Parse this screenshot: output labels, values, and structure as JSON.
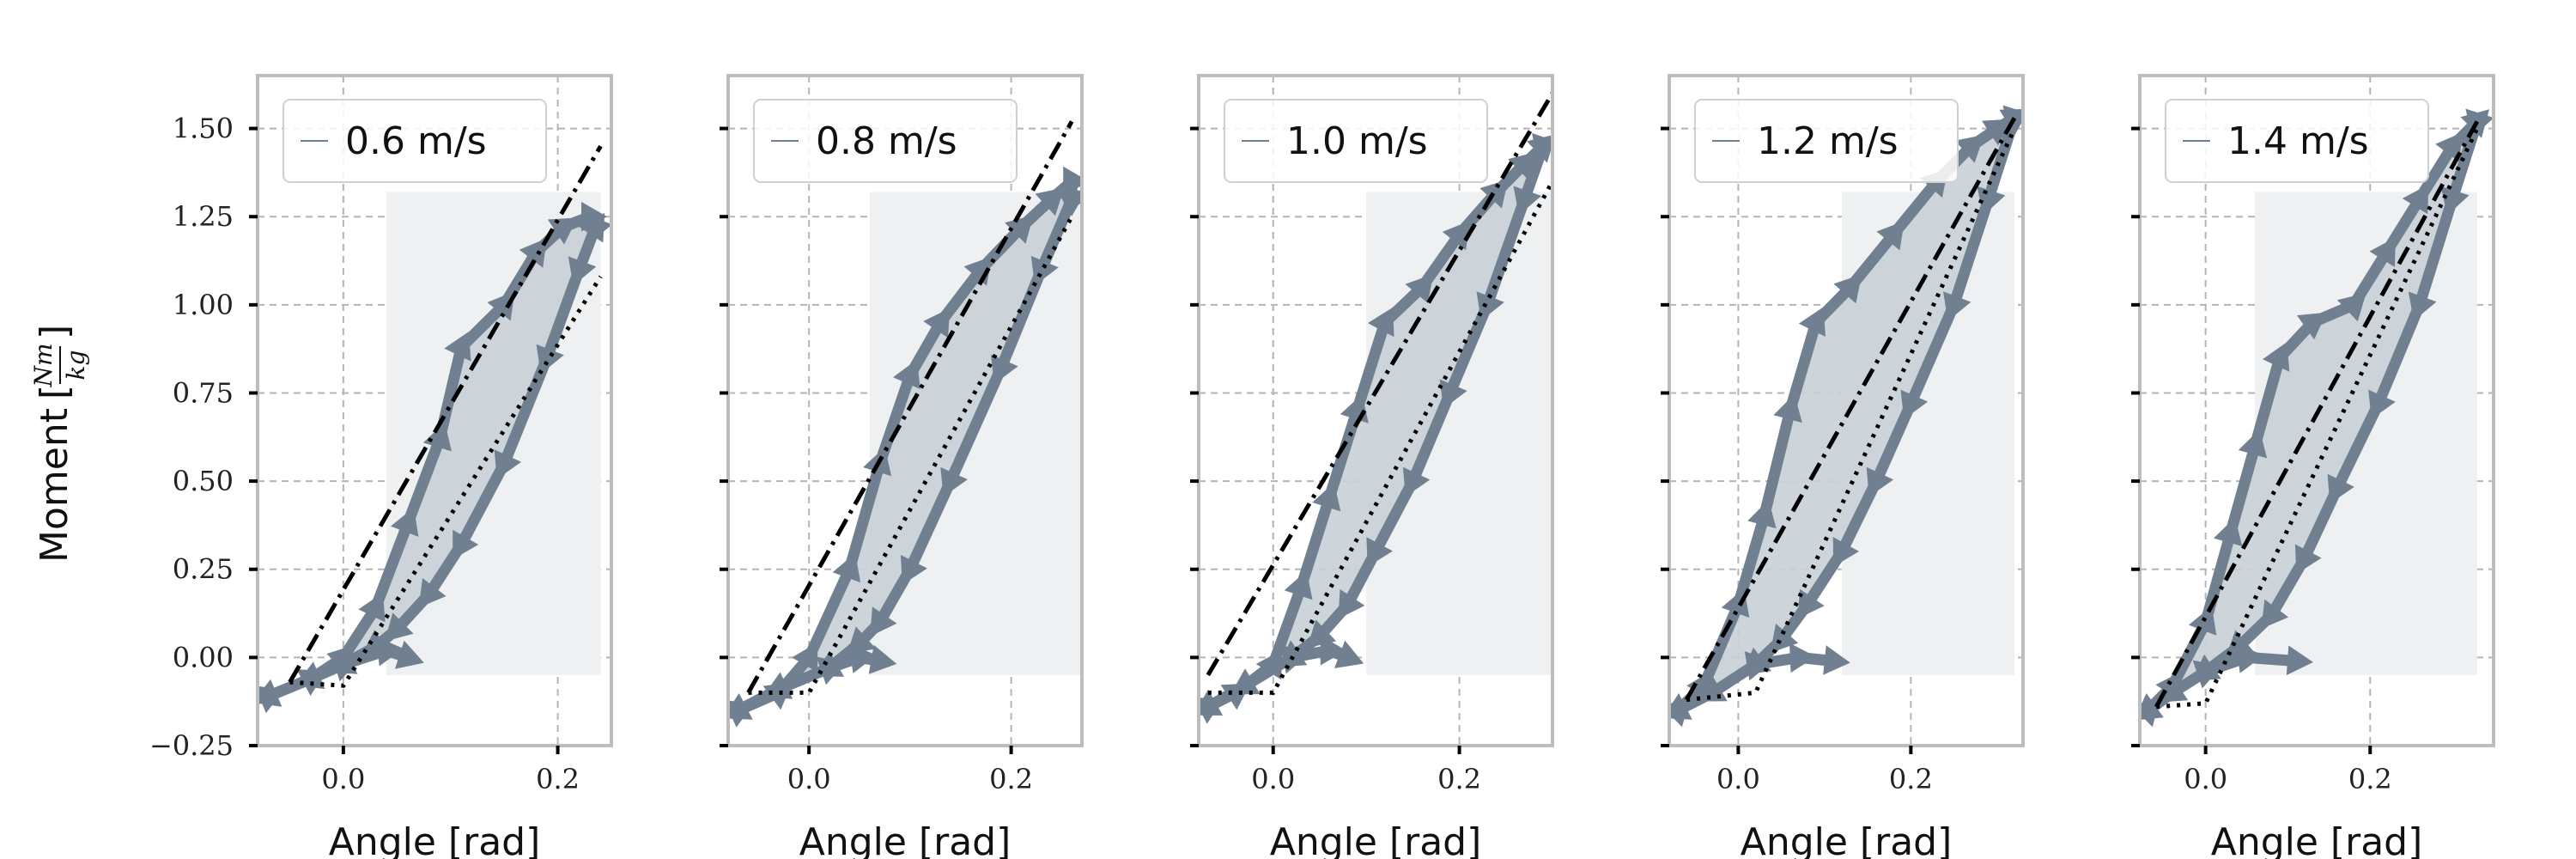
{
  "chart_data": {
    "type": "line",
    "ylabel_text": "Moment",
    "ylabel_unit": {
      "numerator": "Nm",
      "denominator": "kg"
    },
    "xlabel": "Angle [rad]",
    "ylim": [
      -0.25,
      1.65
    ],
    "yticks": [
      -0.25,
      0.0,
      0.25,
      0.5,
      0.75,
      1.0,
      1.25,
      1.5
    ],
    "ytick_labels": [
      "−0.25",
      "0.00",
      "0.25",
      "0.50",
      "0.75",
      "1.00",
      "1.25",
      "1.50"
    ],
    "xticks": [
      0.0,
      0.2
    ],
    "xtick_labels": [
      "0.0",
      "0.2"
    ],
    "grid": true,
    "legend_placement": "upper left",
    "colors": {
      "loop": "#708090",
      "loop_fill": "#c8cfd6",
      "shade": "#eef0f2",
      "frame": "#bdbdbd",
      "grid": "#b5b5b5",
      "fit": "#000000"
    },
    "panels": [
      {
        "legend": "0.6 m/s",
        "xlim": [
          -0.08,
          0.25
        ],
        "loading": [
          [
            -0.07,
            -0.11
          ],
          [
            -0.03,
            -0.06
          ],
          [
            0.0,
            0.0
          ],
          [
            0.03,
            0.14
          ],
          [
            0.06,
            0.38
          ],
          [
            0.09,
            0.62
          ],
          [
            0.11,
            0.88
          ],
          [
            0.15,
            1.0
          ],
          [
            0.18,
            1.15
          ],
          [
            0.205,
            1.22
          ],
          [
            0.23,
            1.25
          ],
          [
            0.235,
            1.22
          ]
        ],
        "unloading": [
          [
            0.235,
            1.22
          ],
          [
            0.22,
            1.1
          ],
          [
            0.19,
            0.85
          ],
          [
            0.15,
            0.55
          ],
          [
            0.11,
            0.32
          ],
          [
            0.08,
            0.18
          ],
          [
            0.05,
            0.08
          ],
          [
            0.03,
            0.03
          ],
          [
            0.0,
            -0.02
          ],
          [
            -0.03,
            -0.06
          ],
          [
            -0.07,
            -0.11
          ]
        ],
        "hook": [
          [
            0.0,
            -0.02
          ],
          [
            0.04,
            0.02
          ],
          [
            0.06,
            0.0
          ]
        ],
        "shade_x": [
          0.04,
          0.24
        ],
        "fit_loading": [
          [
            -0.05,
            -0.07
          ],
          [
            0.24,
            1.45
          ]
        ],
        "fit_unloading": [
          [
            -0.05,
            -0.07
          ],
          [
            0.0,
            -0.08
          ],
          [
            0.24,
            1.08
          ]
        ]
      },
      {
        "legend": "0.8 m/s",
        "xlim": [
          -0.08,
          0.27
        ],
        "loading": [
          [
            -0.07,
            -0.15
          ],
          [
            -0.03,
            -0.1
          ],
          [
            0.0,
            0.0
          ],
          [
            0.04,
            0.25
          ],
          [
            0.07,
            0.55
          ],
          [
            0.1,
            0.8
          ],
          [
            0.13,
            0.95
          ],
          [
            0.17,
            1.1
          ],
          [
            0.21,
            1.22
          ],
          [
            0.24,
            1.3
          ],
          [
            0.26,
            1.35
          ],
          [
            0.26,
            1.3
          ]
        ],
        "unloading": [
          [
            0.26,
            1.3
          ],
          [
            0.23,
            1.1
          ],
          [
            0.19,
            0.82
          ],
          [
            0.14,
            0.5
          ],
          [
            0.1,
            0.25
          ],
          [
            0.07,
            0.1
          ],
          [
            0.05,
            0.04
          ],
          [
            0.02,
            -0.03
          ],
          [
            -0.03,
            -0.09
          ],
          [
            -0.07,
            -0.15
          ]
        ],
        "hook": [
          [
            0.02,
            -0.03
          ],
          [
            0.05,
            0.0
          ],
          [
            0.07,
            -0.01
          ]
        ],
        "shade_x": [
          0.06,
          0.27
        ],
        "fit_loading": [
          [
            -0.06,
            -0.1
          ],
          [
            0.26,
            1.52
          ]
        ],
        "fit_unloading": [
          [
            -0.06,
            -0.1
          ],
          [
            0.0,
            -0.1
          ],
          [
            0.26,
            1.25
          ]
        ]
      },
      {
        "legend": "1.0 m/s",
        "xlim": [
          -0.08,
          0.3
        ],
        "loading": [
          [
            -0.07,
            -0.14
          ],
          [
            -0.04,
            -0.1
          ],
          [
            0.0,
            -0.02
          ],
          [
            0.03,
            0.2
          ],
          [
            0.06,
            0.45
          ],
          [
            0.09,
            0.7
          ],
          [
            0.12,
            0.95
          ],
          [
            0.16,
            1.05
          ],
          [
            0.2,
            1.2
          ],
          [
            0.24,
            1.32
          ],
          [
            0.27,
            1.4
          ],
          [
            0.29,
            1.45
          ]
        ],
        "unloading": [
          [
            0.29,
            1.45
          ],
          [
            0.27,
            1.3
          ],
          [
            0.23,
            1.0
          ],
          [
            0.19,
            0.75
          ],
          [
            0.15,
            0.5
          ],
          [
            0.11,
            0.3
          ],
          [
            0.08,
            0.15
          ],
          [
            0.05,
            0.06
          ],
          [
            0.02,
            0.0
          ],
          [
            -0.03,
            -0.08
          ],
          [
            -0.07,
            -0.14
          ]
        ],
        "hook": [
          [
            0.02,
            0.0
          ],
          [
            0.06,
            0.02
          ],
          [
            0.08,
            0.0
          ]
        ],
        "shade_x": [
          0.1,
          0.3
        ],
        "fit_loading": [
          [
            -0.07,
            -0.05
          ],
          [
            0.3,
            1.6
          ]
        ],
        "fit_unloading": [
          [
            -0.07,
            -0.1
          ],
          [
            0.0,
            -0.1
          ],
          [
            0.3,
            1.35
          ]
        ]
      },
      {
        "legend": "1.2 m/s",
        "xlim": [
          -0.08,
          0.33
        ],
        "loading": [
          [
            -0.07,
            -0.15
          ],
          [
            -0.04,
            -0.08
          ],
          [
            0.0,
            0.15
          ],
          [
            0.03,
            0.4
          ],
          [
            0.06,
            0.7
          ],
          [
            0.09,
            0.95
          ],
          [
            0.13,
            1.05
          ],
          [
            0.18,
            1.2
          ],
          [
            0.23,
            1.35
          ],
          [
            0.27,
            1.45
          ],
          [
            0.3,
            1.5
          ],
          [
            0.32,
            1.53
          ]
        ],
        "unloading": [
          [
            0.32,
            1.53
          ],
          [
            0.29,
            1.3
          ],
          [
            0.25,
            1.0
          ],
          [
            0.2,
            0.72
          ],
          [
            0.16,
            0.5
          ],
          [
            0.12,
            0.3
          ],
          [
            0.08,
            0.15
          ],
          [
            0.05,
            0.05
          ],
          [
            0.02,
            -0.02
          ],
          [
            -0.03,
            -0.1
          ],
          [
            -0.07,
            -0.15
          ]
        ],
        "hook": [
          [
            0.02,
            -0.02
          ],
          [
            0.07,
            0.0
          ],
          [
            0.11,
            -0.01
          ]
        ],
        "shade_x": [
          0.12,
          0.32
        ],
        "fit_loading": [
          [
            -0.06,
            -0.12
          ],
          [
            0.32,
            1.53
          ]
        ],
        "fit_unloading": [
          [
            -0.06,
            -0.12
          ],
          [
            0.02,
            -0.1
          ],
          [
            0.32,
            1.5
          ]
        ]
      },
      {
        "legend": "1.4 m/s",
        "xlim": [
          -0.08,
          0.35
        ],
        "loading": [
          [
            -0.07,
            -0.15
          ],
          [
            -0.04,
            -0.08
          ],
          [
            0.0,
            0.1
          ],
          [
            0.03,
            0.35
          ],
          [
            0.06,
            0.6
          ],
          [
            0.09,
            0.85
          ],
          [
            0.13,
            0.95
          ],
          [
            0.18,
            1.0
          ],
          [
            0.22,
            1.15
          ],
          [
            0.26,
            1.3
          ],
          [
            0.3,
            1.45
          ],
          [
            0.33,
            1.52
          ]
        ],
        "unloading": [
          [
            0.33,
            1.52
          ],
          [
            0.3,
            1.3
          ],
          [
            0.26,
            1.0
          ],
          [
            0.21,
            0.72
          ],
          [
            0.16,
            0.48
          ],
          [
            0.12,
            0.28
          ],
          [
            0.08,
            0.12
          ],
          [
            0.04,
            0.03
          ],
          [
            0.0,
            -0.04
          ],
          [
            -0.04,
            -0.1
          ],
          [
            -0.07,
            -0.15
          ]
        ],
        "hook": [
          [
            0.0,
            -0.04
          ],
          [
            0.05,
            0.0
          ],
          [
            0.11,
            -0.01
          ]
        ],
        "shade_x": [
          0.06,
          0.33
        ],
        "fit_loading": [
          [
            -0.06,
            -0.14
          ],
          [
            0.33,
            1.52
          ]
        ],
        "fit_unloading": [
          [
            -0.06,
            -0.14
          ],
          [
            0.0,
            -0.13
          ],
          [
            0.33,
            1.5
          ]
        ]
      }
    ]
  }
}
